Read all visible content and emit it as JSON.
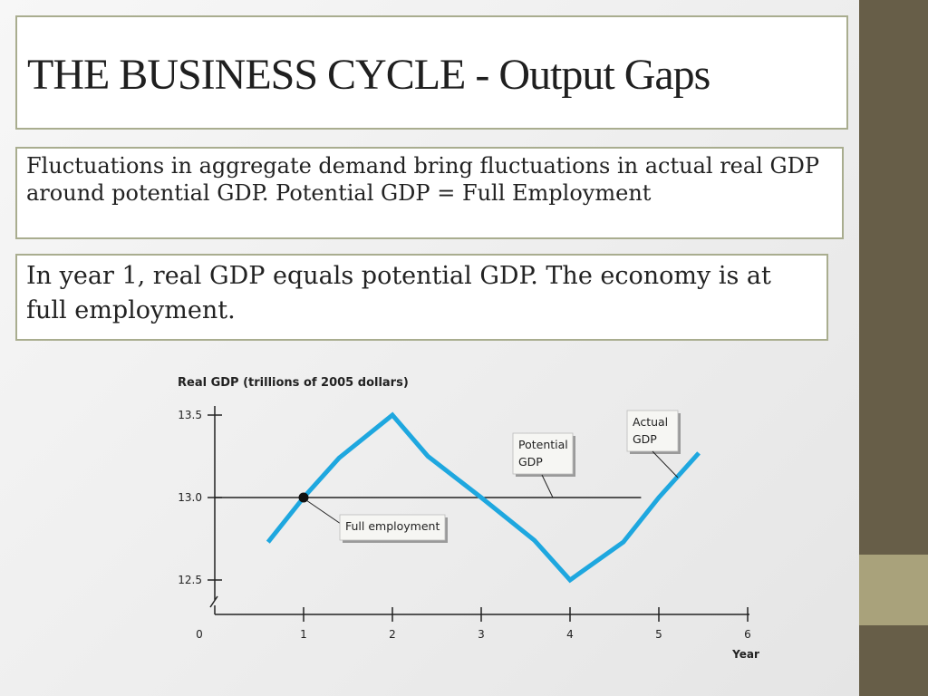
{
  "slide": {
    "title": "THE BUSINESS CYCLE - Output Gaps",
    "paragraph_1": "Fluctuations in aggregate demand bring fluctuations in actual real GDP around potential GDP. Potential GDP = Full Employment",
    "paragraph_2": "In year 1, real GDP equals potential GDP. The economy is at full employment.",
    "colors": {
      "sidebar_dark": "#675e48",
      "sidebar_light": "#a9a27b",
      "box_border": "#a9ad8f",
      "actual_line": "#1ea7df",
      "potential_line": "#222222"
    }
  },
  "chart_data": {
    "type": "line",
    "ylabel": "Real GDP (trillions of 2005 dollars)",
    "xlabel": "Year",
    "xlim": [
      0,
      6
    ],
    "ylim": [
      12.5,
      13.5
    ],
    "x_ticks": [
      "0",
      "1",
      "2",
      "3",
      "4",
      "5",
      "6"
    ],
    "y_ticks": [
      "12.5",
      "13.0",
      "13.5"
    ],
    "series": [
      {
        "label_lines": [
          "Actual",
          "GDP"
        ],
        "x": [
          0.6,
          1.0,
          1.4,
          2.0,
          2.4,
          3.0,
          3.6,
          4.0,
          4.6,
          5.0,
          5.45
        ],
        "y": [
          12.73,
          13.0,
          13.24,
          13.5,
          13.25,
          13.0,
          12.74,
          12.5,
          12.73,
          13.0,
          13.27
        ]
      },
      {
        "label_lines": [
          "Potential",
          "GDP"
        ],
        "x": [
          0.0,
          4.8
        ],
        "y": [
          13.0,
          13.0
        ]
      }
    ],
    "annotations": [
      {
        "text": "Full employment",
        "x": 1,
        "y": 13.0
      }
    ]
  }
}
